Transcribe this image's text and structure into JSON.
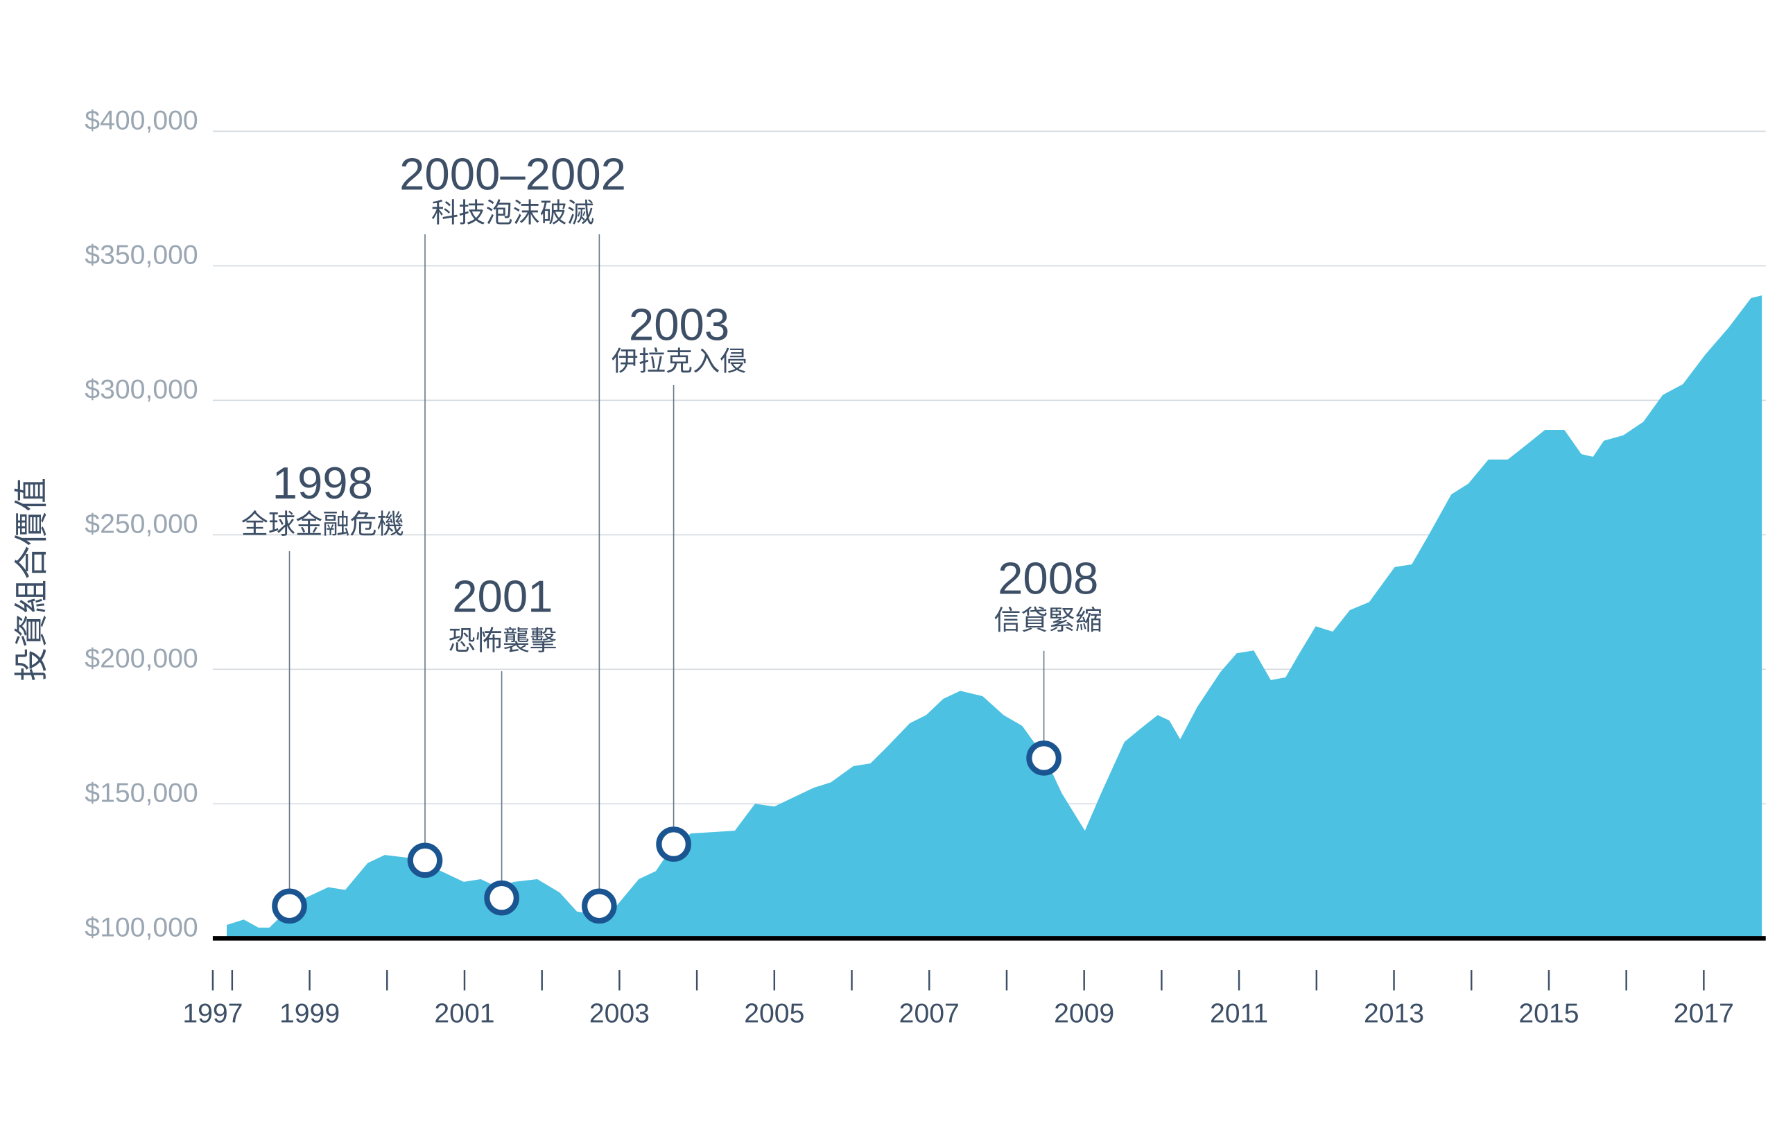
{
  "chart_data": {
    "type": "area",
    "y_label": "投資組合價值",
    "color": "#4dc1e1",
    "marker_color": "#1a5591",
    "grid": true,
    "xlim": [
      1997.75,
      2017.8
    ],
    "xticks": [
      {
        "value": 1997.75,
        "label": "1997"
      },
      1999,
      2001,
      2003,
      2005,
      2007,
      2009,
      2011,
      2013,
      2015,
      2017
    ],
    "xminorticks": [
      1998,
      2000,
      2002,
      2004,
      2006,
      2008,
      2010,
      2012,
      2014,
      2016
    ],
    "ylim": [
      100000,
      400000
    ],
    "yticks": [
      {
        "value": 100000,
        "label": "$100,000"
      },
      {
        "value": 150000,
        "label": "$150,000"
      },
      {
        "value": 200000,
        "label": "$200,000"
      },
      {
        "value": 250000,
        "label": "$250,000"
      },
      {
        "value": 300000,
        "label": "$300,000"
      },
      {
        "value": 350000,
        "label": "$350,000"
      },
      {
        "value": 400000,
        "label": "$400,000"
      }
    ],
    "x": [
      1997.93,
      1998.15,
      1998.34,
      1998.48,
      1998.66,
      1998.87,
      1999.24,
      1999.46,
      1999.75,
      1999.97,
      2000.26,
      2000.55,
      2000.77,
      2000.99,
      2001.21,
      2001.43,
      2001.64,
      2001.94,
      2002.23,
      2002.45,
      2002.66,
      2002.96,
      2003.25,
      2003.47,
      2003.73,
      2003.93,
      2004.49,
      2004.75,
      2005.0,
      2005.51,
      2005.73,
      2006.02,
      2006.24,
      2006.45,
      2006.75,
      2006.96,
      2007.18,
      2007.4,
      2007.69,
      2007.96,
      2008.2,
      2008.5,
      2008.71,
      2009.01,
      2009.22,
      2009.52,
      2009.73,
      2009.95,
      2010.1,
      2010.24,
      2010.46,
      2010.76,
      2010.97,
      2011.19,
      2011.41,
      2011.6,
      2011.78,
      2011.99,
      2012.21,
      2012.43,
      2012.68,
      2013.01,
      2013.23,
      2013.45,
      2013.74,
      2013.96,
      2014.22,
      2014.47,
      2014.69,
      2014.95,
      2015.2,
      2015.42,
      2015.57,
      2015.71,
      2015.96,
      2016.22,
      2016.47,
      2016.73,
      2017.02,
      2017.32,
      2017.61,
      2017.75
    ],
    "values": [
      105000,
      107000,
      104000,
      104000,
      109000,
      114000,
      119000,
      118000,
      128000,
      131000,
      130000,
      127000,
      124000,
      121000,
      122000,
      119000,
      121000,
      122000,
      117000,
      110000,
      109000,
      112000,
      122000,
      125000,
      136000,
      139000,
      140000,
      150000,
      149000,
      156000,
      158000,
      164000,
      165000,
      171000,
      180000,
      183000,
      189000,
      192000,
      190000,
      183000,
      179000,
      167000,
      154000,
      140000,
      154000,
      173000,
      178000,
      183000,
      181000,
      174000,
      186000,
      199000,
      206000,
      207000,
      196000,
      197000,
      206000,
      216000,
      214000,
      222000,
      225000,
      238000,
      239000,
      250000,
      265000,
      269000,
      278000,
      278000,
      283000,
      289000,
      289000,
      280000,
      279000,
      285000,
      287000,
      292000,
      302000,
      306000,
      317000,
      327000,
      338000,
      339000
    ],
    "annotations": [
      {
        "label": "1998",
        "text": "全球金融危機",
        "points": [
          {
            "x": 1998.74,
            "y": 112000
          }
        ]
      },
      {
        "label": "2000–2002",
        "text": "科技泡沫破滅",
        "points": [
          {
            "x": 2000.49,
            "y": 129000
          },
          {
            "x": 2002.74,
            "y": 112000
          }
        ]
      },
      {
        "label": "2001",
        "text": "恐怖襲擊",
        "points": [
          {
            "x": 2001.48,
            "y": 115000
          }
        ]
      },
      {
        "label": "2003",
        "text": "伊拉克入侵",
        "points": [
          {
            "x": 2003.7,
            "y": 135000
          }
        ]
      },
      {
        "label": "2008",
        "text": "信貸緊縮",
        "points": [
          {
            "x": 2008.48,
            "y": 167000
          }
        ]
      }
    ]
  }
}
